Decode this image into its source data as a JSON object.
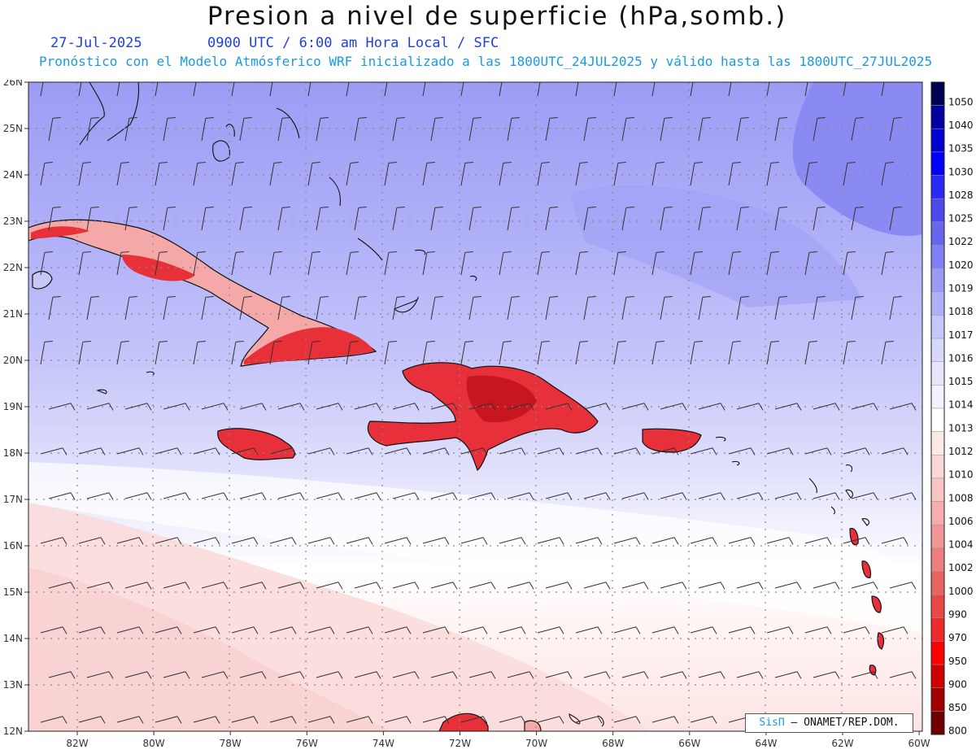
{
  "header": {
    "title": "Presion a nivel de superficie (hPa,somb.)",
    "date": "27-Jul-2025",
    "valid_time": "0900 UTC / 6:00 am Hora Local / SFC",
    "model_line": "Pronóstico con el Modelo Atmósferico WRF inicializado a las 1800UTC_24JUL2025 y válido hasta las  1800UTC_27JUL2025"
  },
  "map": {
    "lon_range": [
      -83.2,
      -60
    ],
    "lat_range": [
      12,
      26
    ],
    "lat_labels": [
      "26N",
      "25N",
      "24N",
      "23N",
      "22N",
      "21N",
      "20N",
      "19N",
      "18N",
      "17N",
      "16N",
      "15N",
      "14N",
      "13N",
      "12N"
    ],
    "lon_labels": [
      "82W",
      "80W",
      "78W",
      "76W",
      "74W",
      "72W",
      "70W",
      "68W",
      "66W",
      "64W",
      "62W",
      "60W"
    ],
    "land_color": "#e8303a",
    "land_color_dark": "#d01825",
    "islands": [
      "Cuba",
      "Hispaniola",
      "Jamaica",
      "Puerto Rico",
      "Bahamas",
      "Lesser Antilles"
    ]
  },
  "colorbar": {
    "levels": [
      "1050",
      "1040",
      "1035",
      "1030",
      "1028",
      "1025",
      "1022",
      "1020",
      "1019",
      "1018",
      "1017",
      "1016",
      "1015",
      "1014",
      "1013",
      "1012",
      "1010",
      "1008",
      "1006",
      "1004",
      "1002",
      "1000",
      "990",
      "970",
      "950",
      "900",
      "850",
      "800"
    ],
    "colors": [
      "#000050",
      "#0000a0",
      "#0000d0",
      "#0000ff",
      "#2a2af5",
      "#4a4ae8",
      "#6666ee",
      "#8080f5",
      "#9a9af5",
      "#b0b0f8",
      "#c6c6fa",
      "#d8d8fb",
      "#e6e6fc",
      "#f2f2fe",
      "#ffffff",
      "#fde8e8",
      "#fbd6d6",
      "#f8c4c4",
      "#f4aeae",
      "#f09696",
      "#ec7e7e",
      "#e86464",
      "#e64848",
      "#ee2a2a",
      "#ff0000",
      "#d00000",
      "#a00000",
      "#700000"
    ]
  },
  "credit": {
    "brand": "SisΠ",
    "org": "– ONAMET/REP.DOM."
  }
}
